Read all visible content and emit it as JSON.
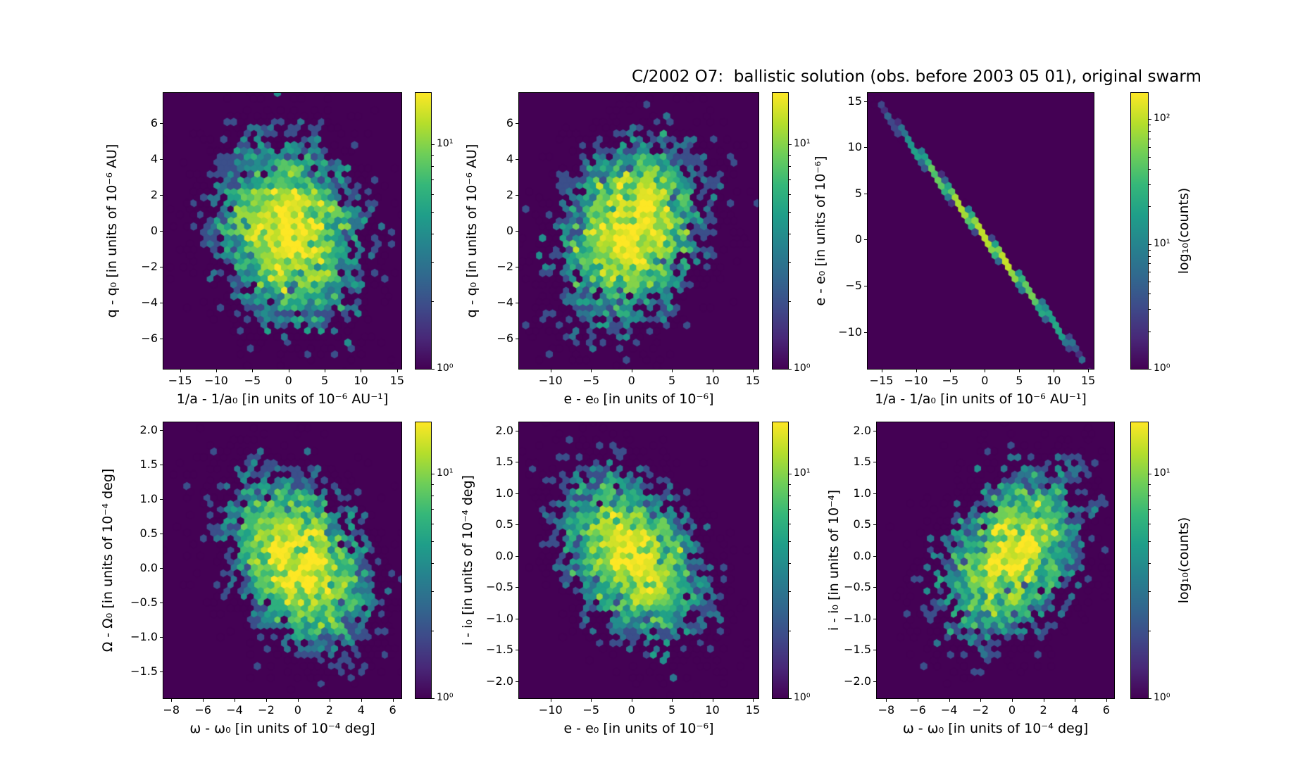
{
  "figure": {
    "title": "C/2002 O7:  ballistic solution (obs. before 2003 05 01), original swarm",
    "background": "#ffffff",
    "colormap": "viridis",
    "colormap_min_hex": "#440154",
    "colormap_max_hex": "#fde725"
  },
  "chart_data": [
    {
      "type": "hexbin",
      "name": "hexbin-q-vs-inverse-a",
      "xlabel": "1/a - 1/a₀ [in units of 10⁻⁶ AU⁻¹]",
      "ylabel": "q - q₀ [in units of 10⁻⁶ AU]",
      "xlim": [
        -17.3,
        15.6
      ],
      "ylim": [
        -7.7,
        7.7
      ],
      "xticks": {
        "values": [
          -15,
          -10,
          -5,
          0,
          5,
          10,
          15
        ],
        "labels": [
          "−15",
          "−10",
          "−5",
          "0",
          "5",
          "10",
          "15"
        ]
      },
      "yticks": {
        "values": [
          6,
          4,
          2,
          0,
          -2,
          -4,
          -6
        ],
        "labels": [
          "6",
          "4",
          "2",
          "0",
          "−2",
          "−4",
          "−6"
        ]
      },
      "grid": false,
      "distribution": {
        "kind": "gaussian",
        "center": [
          0,
          0
        ],
        "sigma": [
          5.0,
          2.6
        ],
        "rho": -0.15,
        "n_points": 4500,
        "peak_count": 17
      },
      "colorbar": {
        "scale": "log",
        "vmin": 1,
        "vmax": 17,
        "major_ticks": [
          {
            "value": 10,
            "label": "10¹"
          },
          {
            "value": 1,
            "label": "10⁰"
          }
        ],
        "label": ""
      }
    },
    {
      "type": "hexbin",
      "name": "hexbin-q-vs-e",
      "xlabel": "e - e₀ [in units of 10⁻⁶]",
      "ylabel": "q - q₀ [in units of 10⁻⁶ AU]",
      "xlim": [
        -13.9,
        15.7
      ],
      "ylim": [
        -7.7,
        7.7
      ],
      "xticks": {
        "values": [
          -10,
          -5,
          0,
          5,
          10,
          15
        ],
        "labels": [
          "−10",
          "−5",
          "0",
          "5",
          "10",
          "15"
        ]
      },
      "yticks": {
        "values": [
          6,
          4,
          2,
          0,
          -2,
          -4,
          -6
        ],
        "labels": [
          "6",
          "4",
          "2",
          "0",
          "−2",
          "−4",
          "−6"
        ]
      },
      "grid": false,
      "distribution": {
        "kind": "gaussian",
        "center": [
          0,
          0
        ],
        "sigma": [
          4.5,
          2.6
        ],
        "rho": 0.25,
        "n_points": 4500,
        "peak_count": 17
      },
      "colorbar": {
        "scale": "log",
        "vmin": 1,
        "vmax": 17,
        "major_ticks": [
          {
            "value": 10,
            "label": "10¹"
          },
          {
            "value": 1,
            "label": "10⁰"
          }
        ],
        "label": ""
      }
    },
    {
      "type": "hexbin",
      "name": "hexbin-e-vs-inverse-a",
      "xlabel": "1/a - 1/a₀ [in units of 10⁻⁶ AU⁻¹]",
      "ylabel": "e - e₀ [in units of 10⁻⁶]",
      "xlim": [
        -17.0,
        15.8
      ],
      "ylim": [
        -14.0,
        15.9
      ],
      "xticks": {
        "values": [
          -15,
          -10,
          -5,
          0,
          5,
          10,
          15
        ],
        "labels": [
          "−15",
          "−10",
          "−5",
          "0",
          "5",
          "10",
          "15"
        ]
      },
      "yticks": {
        "values": [
          15,
          10,
          5,
          0,
          -5,
          -10
        ],
        "labels": [
          "15",
          "10",
          "5",
          "0",
          "−5",
          "−10"
        ]
      },
      "grid": false,
      "distribution": {
        "kind": "line",
        "slope": -0.94,
        "intercept": 0.3,
        "sigma_along": 5.6,
        "sigma_perp": 0.12,
        "n_points": 2400,
        "peak_count": 160
      },
      "colorbar": {
        "scale": "log",
        "vmin": 1,
        "vmax": 162,
        "major_ticks": [
          {
            "value": 100,
            "label": "10²"
          },
          {
            "value": 10,
            "label": "10¹"
          },
          {
            "value": 1,
            "label": "10⁰"
          }
        ],
        "label": "log₁₀(counts)"
      }
    },
    {
      "type": "hexbin",
      "name": "hexbin-bigomega-vs-omega",
      "xlabel": "ω - ω₀ [in units of 10⁻⁴ deg]",
      "ylabel": "Ω - Ω₀ [in units of 10⁻⁴ deg]",
      "xlim": [
        -8.5,
        6.55
      ],
      "ylim": [
        -1.89,
        2.11
      ],
      "xticks": {
        "values": [
          -8,
          -6,
          -4,
          -2,
          0,
          2,
          4,
          6
        ],
        "labels": [
          "−8",
          "−6",
          "−4",
          "−2",
          "0",
          "2",
          "4",
          "6"
        ]
      },
      "yticks": {
        "values": [
          2.0,
          1.5,
          1.0,
          0.5,
          0.0,
          -0.5,
          -1.0,
          -1.5
        ],
        "labels": [
          "2.0",
          "1.5",
          "1.0",
          "0.5",
          "0.0",
          "−0.5",
          "−1.0",
          "−1.5"
        ]
      },
      "grid": false,
      "distribution": {
        "kind": "gaussian",
        "center": [
          0,
          0.1
        ],
        "sigma": [
          2.3,
          0.65
        ],
        "rho": -0.38,
        "n_points": 4200,
        "peak_count": 17
      },
      "colorbar": {
        "scale": "log",
        "vmin": 1,
        "vmax": 17,
        "major_ticks": [
          {
            "value": 10,
            "label": "10¹"
          },
          {
            "value": 1,
            "label": "10⁰"
          }
        ],
        "label": ""
      }
    },
    {
      "type": "hexbin",
      "name": "hexbin-i-vs-e",
      "xlabel": "e - e₀ [in units of 10⁻⁶]",
      "ylabel": "i - i₀ [in units of 10⁻⁴ deg]",
      "xlim": [
        -13.9,
        15.7
      ],
      "ylim": [
        -2.27,
        2.13
      ],
      "xticks": {
        "values": [
          -10,
          -5,
          0,
          5,
          10,
          15
        ],
        "labels": [
          "−10",
          "−5",
          "0",
          "5",
          "10",
          "15"
        ]
      },
      "yticks": {
        "values": [
          2.0,
          1.5,
          1.0,
          0.5,
          0.0,
          -0.5,
          -1.0,
          -1.5,
          -2.0
        ],
        "labels": [
          "2.0",
          "1.5",
          "1.0",
          "0.5",
          "0.0",
          "−0.5",
          "−1.0",
          "−1.5",
          "−2.0"
        ]
      },
      "grid": false,
      "distribution": {
        "kind": "gaussian",
        "center": [
          0,
          0
        ],
        "sigma": [
          4.5,
          0.68
        ],
        "rho": -0.4,
        "n_points": 3800,
        "peak_count": 17
      },
      "colorbar": {
        "scale": "log",
        "vmin": 1,
        "vmax": 17,
        "major_ticks": [
          {
            "value": 10,
            "label": "10¹"
          },
          {
            "value": 1,
            "label": "10⁰"
          }
        ],
        "label": ""
      }
    },
    {
      "type": "hexbin",
      "name": "hexbin-i-vs-omega",
      "xlabel": "ω - ω₀ [in units of 10⁻⁴ deg]",
      "ylabel": "i - i₀ [in units of 10⁻⁴]",
      "xlim": [
        -8.6,
        6.5
      ],
      "ylim": [
        -2.27,
        2.13
      ],
      "xticks": {
        "values": [
          -8,
          -6,
          -4,
          -2,
          0,
          2,
          4,
          6
        ],
        "labels": [
          "−8",
          "−6",
          "−4",
          "−2",
          "0",
          "2",
          "4",
          "6"
        ]
      },
      "yticks": {
        "values": [
          2.0,
          1.5,
          1.0,
          0.5,
          0.0,
          -0.5,
          -1.0,
          -1.5,
          -2.0
        ],
        "labels": [
          "2.0",
          "1.5",
          "1.0",
          "0.5",
          "0.0",
          "−0.5",
          "−1.0",
          "−1.5",
          "−2.0"
        ]
      },
      "grid": false,
      "distribution": {
        "kind": "gaussian",
        "center": [
          0,
          0
        ],
        "sigma": [
          2.3,
          0.68
        ],
        "rho": 0.38,
        "n_points": 3600,
        "peak_count": 17
      },
      "colorbar": {
        "scale": "log",
        "vmin": 1,
        "vmax": 17,
        "major_ticks": [
          {
            "value": 10,
            "label": "10¹"
          },
          {
            "value": 1,
            "label": "10⁰"
          }
        ],
        "label": "log₁₀(counts)"
      }
    }
  ]
}
